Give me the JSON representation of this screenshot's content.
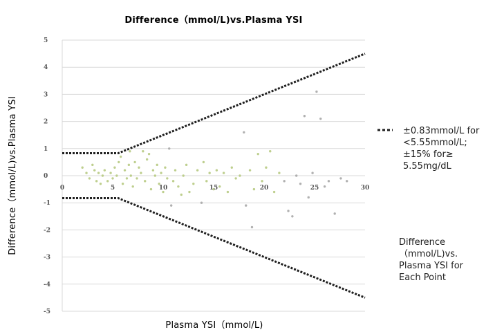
{
  "chart_data": {
    "type": "scatter",
    "title": "Difference（mmol/L)vs.Plasma YSI",
    "xlabel": "Plasma YSI（mmol/L)",
    "ylabel": "Difference（mmol/L)vs.Plasma YSI",
    "xlim": [
      0,
      30
    ],
    "ylim": [
      -5,
      5
    ],
    "x_ticks": [
      "0",
      "5",
      "10",
      "15",
      "20",
      "25",
      "30"
    ],
    "y_ticks": [
      "5",
      "4",
      "3",
      "2",
      "1",
      "0",
      "-1",
      "-2",
      "-3",
      "-4",
      "-5"
    ],
    "grid": true,
    "legend_position": "right",
    "legend": [
      {
        "label_lines": [
          "±0.83mmol/L for",
          "<5.55mmol/L;",
          "±15% for≥",
          "5.55mg/dL"
        ],
        "style": "dashed-line"
      },
      {
        "label_lines": [
          "Difference",
          "（mmol/L)vs.",
          "Plasma YSI for",
          "Each Point"
        ],
        "style": "points"
      }
    ],
    "boundary_lines": {
      "upper": [
        [
          0,
          0.83
        ],
        [
          5.55,
          0.83
        ],
        [
          30,
          4.5
        ]
      ],
      "lower": [
        [
          0,
          -0.83
        ],
        [
          5.55,
          -0.83
        ],
        [
          30,
          -4.5
        ]
      ]
    },
    "series": [
      {
        "values": [
          [
            2.0,
            0.3
          ],
          [
            2.4,
            0.1
          ],
          [
            2.7,
            -0.1
          ],
          [
            3.0,
            0.4
          ],
          [
            3.2,
            0.2
          ],
          [
            3.4,
            -0.2
          ],
          [
            3.6,
            0.1
          ],
          [
            3.8,
            -0.3
          ],
          [
            4.0,
            0.0
          ],
          [
            4.2,
            0.2
          ],
          [
            4.5,
            -0.2
          ],
          [
            4.8,
            0.1
          ],
          [
            5.0,
            -0.1
          ],
          [
            5.2,
            0.3
          ],
          [
            5.4,
            0.0
          ],
          [
            5.6,
            0.5
          ],
          [
            5.8,
            0.7
          ],
          [
            6.0,
            -0.3
          ],
          [
            6.2,
            0.2
          ],
          [
            6.4,
            -0.1
          ],
          [
            6.6,
            0.4
          ],
          [
            6.8,
            0.0
          ],
          [
            7.0,
            -0.4
          ],
          [
            7.2,
            0.5
          ],
          [
            7.4,
            -0.1
          ],
          [
            7.6,
            0.3
          ],
          [
            7.8,
            0.1
          ],
          [
            8.0,
            0.9
          ],
          [
            8.2,
            -0.2
          ],
          [
            8.4,
            0.6
          ],
          [
            8.6,
            0.8
          ],
          [
            8.8,
            -0.5
          ],
          [
            9.0,
            0.2
          ],
          [
            9.2,
            0.0
          ],
          [
            9.4,
            0.4
          ],
          [
            9.6,
            -0.3
          ],
          [
            9.8,
            0.1
          ],
          [
            10.0,
            -0.6
          ],
          [
            10.2,
            0.3
          ],
          [
            10.4,
            -0.1
          ],
          [
            10.6,
            1.0
          ],
          [
            10.8,
            -1.1
          ],
          [
            11.0,
            -0.2
          ],
          [
            11.2,
            0.2
          ],
          [
            11.5,
            -0.4
          ],
          [
            11.8,
            -0.7
          ],
          [
            12.0,
            0.0
          ],
          [
            12.3,
            0.4
          ],
          [
            12.6,
            -0.6
          ],
          [
            13.0,
            -0.3
          ],
          [
            13.4,
            0.2
          ],
          [
            13.8,
            -1.0
          ],
          [
            14.0,
            0.5
          ],
          [
            14.3,
            -0.2
          ],
          [
            14.6,
            0.1
          ],
          [
            15.0,
            -0.5
          ],
          [
            15.3,
            0.2
          ],
          [
            15.6,
            -0.4
          ],
          [
            16.0,
            0.1
          ],
          [
            16.4,
            -0.6
          ],
          [
            16.8,
            0.3
          ],
          [
            17.2,
            -0.1
          ],
          [
            17.6,
            0.0
          ],
          [
            18.0,
            1.6
          ],
          [
            18.2,
            -1.1
          ],
          [
            18.6,
            0.2
          ],
          [
            19.0,
            -0.5
          ],
          [
            19.4,
            0.8
          ],
          [
            19.8,
            -0.2
          ],
          [
            20.2,
            0.3
          ],
          [
            20.6,
            0.9
          ],
          [
            21.0,
            -0.6
          ],
          [
            21.5,
            0.1
          ],
          [
            22.0,
            -0.2
          ],
          [
            22.4,
            -1.3
          ],
          [
            22.8,
            -1.5
          ],
          [
            23.2,
            0.0
          ],
          [
            23.6,
            -0.3
          ],
          [
            24.0,
            2.2
          ],
          [
            24.4,
            -0.8
          ],
          [
            24.8,
            0.1
          ],
          [
            25.2,
            3.1
          ],
          [
            25.6,
            2.1
          ],
          [
            26.0,
            -0.4
          ],
          [
            26.4,
            -0.2
          ],
          [
            27.0,
            -1.4
          ],
          [
            27.6,
            -0.1
          ],
          [
            28.2,
            -0.2
          ],
          [
            18.8,
            -1.9
          ],
          [
            6.7,
            0.9
          ]
        ]
      }
    ]
  }
}
